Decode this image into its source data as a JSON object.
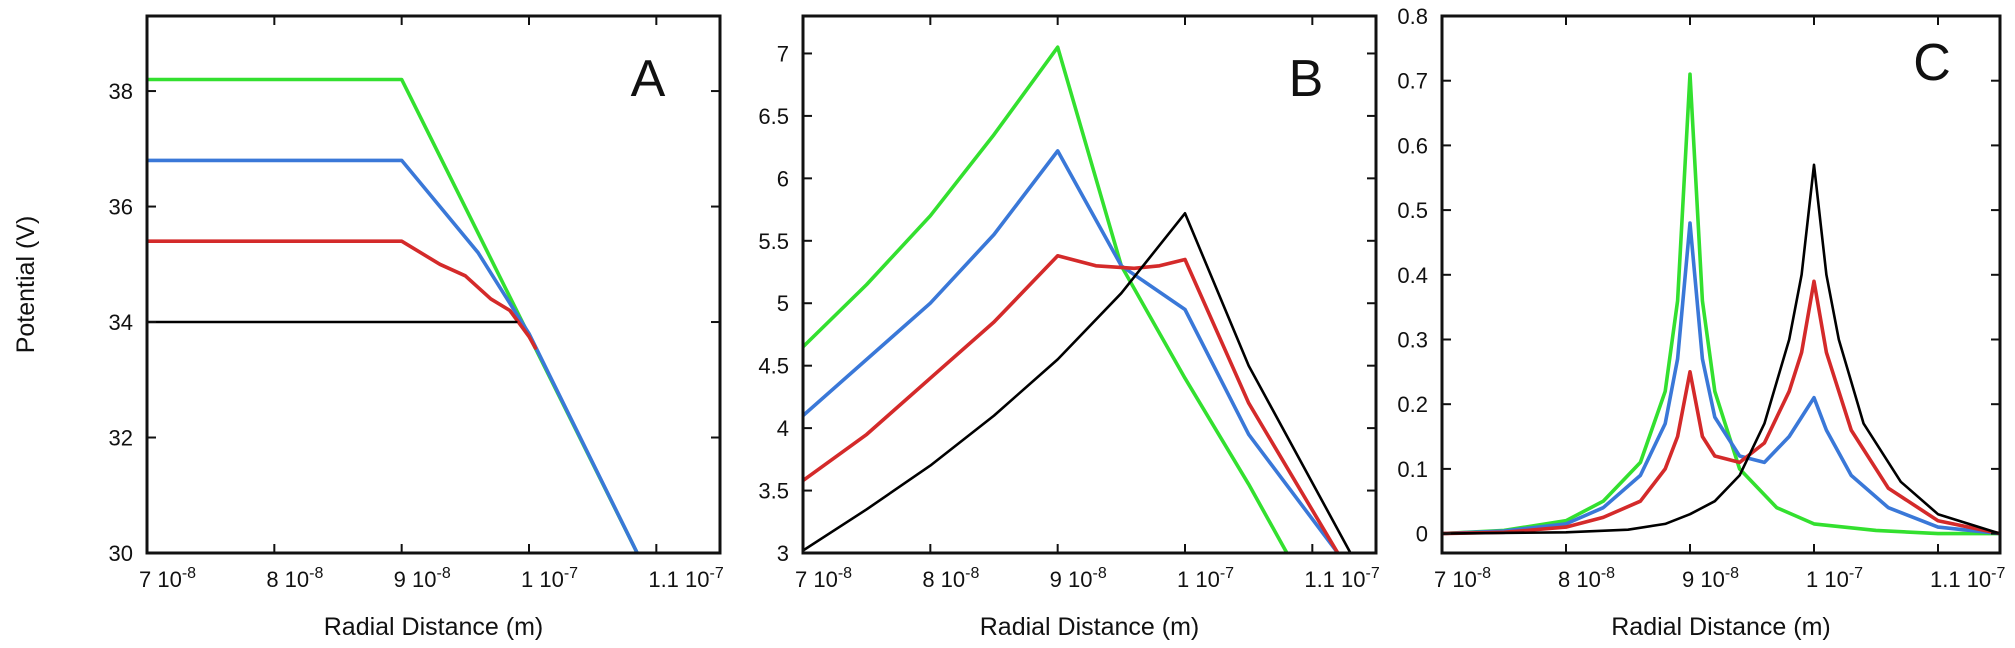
{
  "figure": {
    "colors": {
      "green": "#33e02f",
      "blue": "#3a78d8",
      "red": "#d42a2a",
      "black": "#000000"
    }
  },
  "chart_data": [
    {
      "type": "line",
      "panel": "A",
      "title": "",
      "xlabel": "Radial Distance  (m)",
      "ylabel": "Potential  (V)",
      "xlim": [
        7e-08,
        1.15e-07
      ],
      "ylim": [
        30,
        39.3
      ],
      "xticks": [
        {
          "value": 7e-08,
          "label": "7 10-8"
        },
        {
          "value": 8e-08,
          "label": "8 10-8"
        },
        {
          "value": 9e-08,
          "label": "9 10-8"
        },
        {
          "value": 1e-07,
          "label": "1 10-7"
        },
        {
          "value": 1.1e-07,
          "label": "1.1 10-7"
        }
      ],
      "yticks": [
        {
          "value": 30,
          "label": "30"
        },
        {
          "value": 32,
          "label": "32"
        },
        {
          "value": 34,
          "label": "34"
        },
        {
          "value": 36,
          "label": "36"
        },
        {
          "value": 38,
          "label": "38"
        }
      ],
      "series": [
        {
          "name": "green",
          "color": "#33e02f",
          "x": [
            7e-08,
            9e-08,
            1.085e-07
          ],
          "y": [
            38.2,
            38.2,
            30
          ]
        },
        {
          "name": "blue",
          "color": "#3a78d8",
          "x": [
            7e-08,
            9e-08,
            9.3e-08,
            9.6e-08,
            9.8e-08,
            1e-07,
            1.085e-07
          ],
          "y": [
            36.8,
            36.8,
            36.0,
            35.2,
            34.5,
            33.8,
            30
          ]
        },
        {
          "name": "red",
          "color": "#d42a2a",
          "x": [
            7e-08,
            9e-08,
            9.3e-08,
            9.5e-08,
            9.7e-08,
            9.85e-08,
            1e-07,
            1.005e-07
          ],
          "y": [
            35.4,
            35.4,
            35.0,
            34.8,
            34.4,
            34.2,
            33.75,
            33.55
          ]
        },
        {
          "name": "black",
          "color": "#000000",
          "x": [
            7e-08,
            9.9e-08
          ],
          "y": [
            34,
            34
          ]
        }
      ]
    },
    {
      "type": "line",
      "panel": "B",
      "title": "",
      "xlabel": "Radial Distance  (m)",
      "ylabel": "",
      "xlim": [
        7e-08,
        1.15e-07
      ],
      "ylim": [
        3,
        7.3
      ],
      "xticks": [
        {
          "value": 7e-08,
          "label": "7 10-8"
        },
        {
          "value": 8e-08,
          "label": "8 10-8"
        },
        {
          "value": 9e-08,
          "label": "9 10-8"
        },
        {
          "value": 1e-07,
          "label": "1 10-7"
        },
        {
          "value": 1.1e-07,
          "label": "1.1 10-7"
        }
      ],
      "yticks": [
        {
          "value": 3,
          "label": "3"
        },
        {
          "value": 3.5,
          "label": "3.5"
        },
        {
          "value": 4,
          "label": "4"
        },
        {
          "value": 4.5,
          "label": "4.5"
        },
        {
          "value": 5,
          "label": "5"
        },
        {
          "value": 5.5,
          "label": "5.5"
        },
        {
          "value": 6,
          "label": "6"
        },
        {
          "value": 6.5,
          "label": "6.5"
        },
        {
          "value": 7,
          "label": "7"
        }
      ],
      "series": [
        {
          "name": "green",
          "color": "#33e02f",
          "x": [
            7e-08,
            7.5e-08,
            8e-08,
            8.5e-08,
            9e-08,
            9.5e-08,
            1e-07,
            1.05e-07,
            1.08e-07
          ],
          "y": [
            4.65,
            5.15,
            5.7,
            6.35,
            7.05,
            5.3,
            4.4,
            3.55,
            3.0
          ]
        },
        {
          "name": "blue",
          "color": "#3a78d8",
          "x": [
            7e-08,
            7.5e-08,
            8e-08,
            8.5e-08,
            9e-08,
            9.5e-08,
            1e-07,
            1.05e-07,
            1.12e-07
          ],
          "y": [
            4.1,
            4.55,
            5.0,
            5.55,
            6.22,
            5.3,
            4.95,
            3.95,
            3.0
          ]
        },
        {
          "name": "red",
          "color": "#d42a2a",
          "x": [
            7e-08,
            7.5e-08,
            8e-08,
            8.5e-08,
            9e-08,
            9.3e-08,
            9.6e-08,
            9.8e-08,
            1e-07,
            1.05e-07,
            1.12e-07
          ],
          "y": [
            3.58,
            3.95,
            4.4,
            4.85,
            5.38,
            5.3,
            5.28,
            5.3,
            5.35,
            4.2,
            3.0
          ]
        },
        {
          "name": "black",
          "color": "#000000",
          "x": [
            7e-08,
            7.5e-08,
            8e-08,
            8.5e-08,
            9e-08,
            9.5e-08,
            1e-07,
            1.05e-07,
            1.13e-07
          ],
          "y": [
            3.02,
            3.35,
            3.7,
            4.1,
            4.55,
            5.08,
            5.72,
            4.5,
            3.0
          ]
        }
      ],
      "annotations": [
        "B"
      ]
    },
    {
      "type": "line",
      "panel": "C",
      "title": "",
      "xlabel": "Radial Distance  (m)",
      "ylabel": "",
      "xlim": [
        7e-08,
        1.15e-07
      ],
      "ylim": [
        -0.03,
        0.8
      ],
      "xticks": [
        {
          "value": 7e-08,
          "label": "7 10-8"
        },
        {
          "value": 8e-08,
          "label": "8 10-8"
        },
        {
          "value": 9e-08,
          "label": "9 10-8"
        },
        {
          "value": 1e-07,
          "label": "1 10-7"
        },
        {
          "value": 1.1e-07,
          "label": "1.1 10-7"
        }
      ],
      "yticks": [
        {
          "value": 0,
          "label": "0"
        },
        {
          "value": 0.1,
          "label": "0.1"
        },
        {
          "value": 0.2,
          "label": "0.2"
        },
        {
          "value": 0.3,
          "label": "0.3"
        },
        {
          "value": 0.4,
          "label": "0.4"
        },
        {
          "value": 0.5,
          "label": "0.5"
        },
        {
          "value": 0.6,
          "label": "0.6"
        },
        {
          "value": 0.7,
          "label": "0.7"
        },
        {
          "value": 0.8,
          "label": "0.8"
        }
      ],
      "series": [
        {
          "name": "green",
          "color": "#33e02f",
          "x": [
            7e-08,
            7.5e-08,
            8e-08,
            8.3e-08,
            8.6e-08,
            8.8e-08,
            8.9e-08,
            9e-08,
            9.1e-08,
            9.2e-08,
            9.4e-08,
            9.7e-08,
            1e-07,
            1.05e-07,
            1.1e-07,
            1.15e-07
          ],
          "y": [
            0.0,
            0.005,
            0.02,
            0.05,
            0.11,
            0.22,
            0.36,
            0.71,
            0.36,
            0.22,
            0.1,
            0.04,
            0.015,
            0.005,
            0.0,
            0.0
          ]
        },
        {
          "name": "blue",
          "color": "#3a78d8",
          "x": [
            7e-08,
            7.5e-08,
            8e-08,
            8.3e-08,
            8.6e-08,
            8.8e-08,
            8.9e-08,
            9e-08,
            9.1e-08,
            9.2e-08,
            9.4e-08,
            9.6e-08,
            9.8e-08,
            9.9e-08,
            1e-07,
            1.01e-07,
            1.03e-07,
            1.06e-07,
            1.1e-07,
            1.15e-07
          ],
          "y": [
            0.0,
            0.004,
            0.015,
            0.04,
            0.09,
            0.17,
            0.27,
            0.48,
            0.27,
            0.18,
            0.12,
            0.11,
            0.15,
            0.18,
            0.21,
            0.16,
            0.09,
            0.04,
            0.01,
            0.0
          ]
        },
        {
          "name": "red",
          "color": "#d42a2a",
          "x": [
            7e-08,
            7.5e-08,
            8e-08,
            8.3e-08,
            8.6e-08,
            8.8e-08,
            8.9e-08,
            9e-08,
            9.1e-08,
            9.2e-08,
            9.4e-08,
            9.6e-08,
            9.8e-08,
            9.9e-08,
            1e-07,
            1.01e-07,
            1.03e-07,
            1.06e-07,
            1.1e-07,
            1.15e-07
          ],
          "y": [
            0.0,
            0.002,
            0.01,
            0.025,
            0.05,
            0.1,
            0.15,
            0.25,
            0.15,
            0.12,
            0.11,
            0.14,
            0.22,
            0.28,
            0.39,
            0.28,
            0.16,
            0.07,
            0.02,
            0.0
          ]
        },
        {
          "name": "black",
          "color": "#000000",
          "x": [
            7e-08,
            8e-08,
            8.5e-08,
            8.8e-08,
            9e-08,
            9.2e-08,
            9.4e-08,
            9.6e-08,
            9.8e-08,
            9.9e-08,
            1e-07,
            1.01e-07,
            1.02e-07,
            1.04e-07,
            1.07e-07,
            1.1e-07,
            1.15e-07
          ],
          "y": [
            0.0,
            0.002,
            0.006,
            0.015,
            0.03,
            0.05,
            0.09,
            0.17,
            0.3,
            0.4,
            0.57,
            0.4,
            0.3,
            0.17,
            0.08,
            0.03,
            0.0
          ]
        }
      ],
      "annotations": [
        "C"
      ]
    }
  ]
}
